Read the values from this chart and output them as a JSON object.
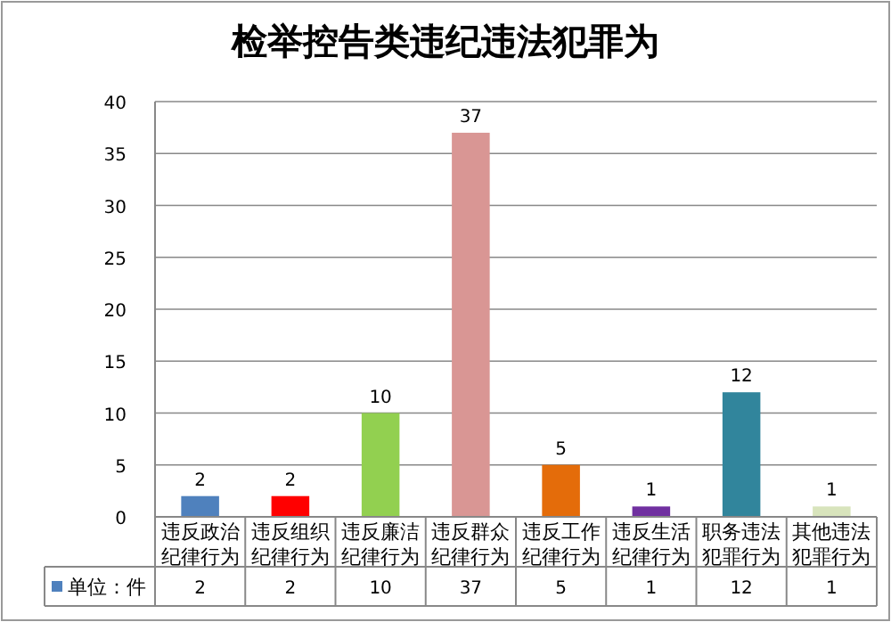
{
  "chart_data": {
    "type": "bar",
    "title": "检举控告类违纪违法犯罪为",
    "categories": [
      "违反政治纪律行为",
      "违反组织纪律行为",
      "违反廉洁纪律行为",
      "违反群众纪律行为",
      "违反工作纪律行为",
      "违反生活纪律行为",
      "职务违法犯罪行为",
      "其他违法犯罪行为"
    ],
    "series": [
      {
        "name": "单位：件",
        "values": [
          2,
          2,
          10,
          37,
          5,
          1,
          12,
          1
        ],
        "value_labels": [
          "2",
          "2",
          "10",
          "37",
          "5",
          "1",
          "12",
          "1"
        ],
        "colors": [
          "#4f81bd",
          "#ff0000",
          "#92d050",
          "#d99694",
          "#e46c0a",
          "#7030a0",
          "#31859c",
          "#d8e4bc"
        ]
      }
    ],
    "ylim": [
      0,
      40
    ],
    "yticks": [
      0,
      5,
      10,
      15,
      20,
      25,
      30,
      35,
      40
    ],
    "grid": "y",
    "legend": "bottom",
    "data_labels": true
  }
}
